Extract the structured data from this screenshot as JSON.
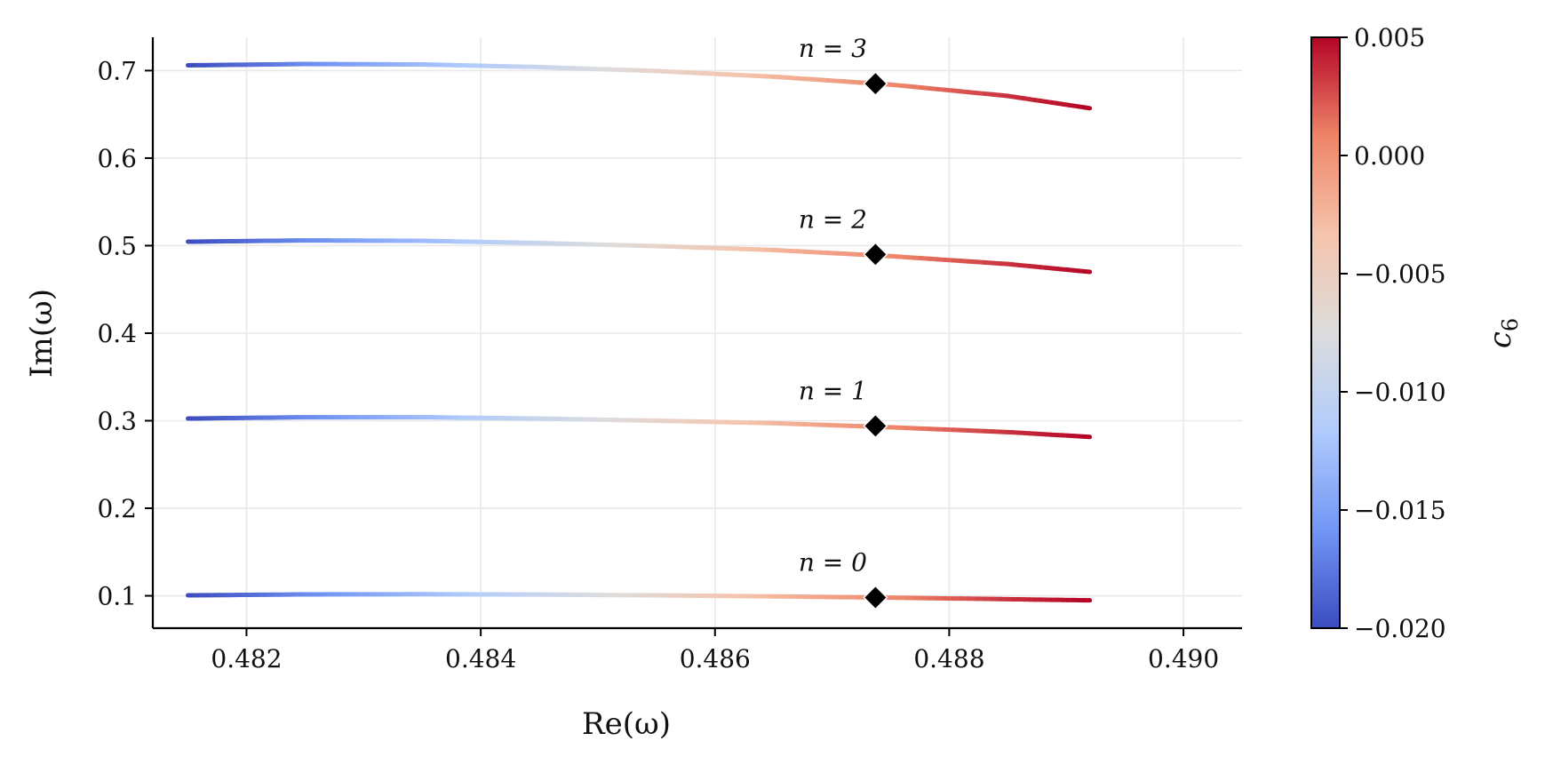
{
  "chart_data": {
    "type": "line",
    "xlabel": "Re(ω)",
    "ylabel": "Im(ω)",
    "xlim": [
      0.4812,
      0.4905
    ],
    "ylim": [
      0.063,
      0.738
    ],
    "x_ticks": [
      0.482,
      0.484,
      0.486,
      0.488,
      0.49
    ],
    "x_tick_labels": [
      "0.482",
      "0.484",
      "0.486",
      "0.488",
      "0.490"
    ],
    "y_ticks": [
      0.1,
      0.2,
      0.3,
      0.4,
      0.5,
      0.6,
      0.7
    ],
    "y_tick_labels": [
      "0.1",
      "0.2",
      "0.3",
      "0.4",
      "0.5",
      "0.6",
      "0.7"
    ],
    "grid": true,
    "color_by": "c6",
    "series": [
      {
        "name": "n = 0",
        "label": "n = 0",
        "x": [
          0.4815,
          0.4825,
          0.4835,
          0.4845,
          0.4855,
          0.4865,
          0.4875,
          0.4885,
          0.4892
        ],
        "y": [
          0.1005,
          0.1016,
          0.1018,
          0.1014,
          0.1005,
          0.0993,
          0.0979,
          0.0961,
          0.0948
        ],
        "c6": [
          -0.02,
          -0.0165,
          -0.013,
          -0.0095,
          -0.006,
          -0.0025,
          0.0005,
          0.0035,
          0.005
        ]
      },
      {
        "name": "n = 1",
        "label": "n = 1",
        "x": [
          0.4815,
          0.4825,
          0.4835,
          0.4845,
          0.4855,
          0.4865,
          0.4875,
          0.4885,
          0.4892
        ],
        "y": [
          0.3025,
          0.304,
          0.304,
          0.3025,
          0.3,
          0.2972,
          0.2925,
          0.287,
          0.2815
        ],
        "c6": [
          -0.02,
          -0.0165,
          -0.013,
          -0.0095,
          -0.006,
          -0.0025,
          0.0005,
          0.0035,
          0.005
        ]
      },
      {
        "name": "n = 2",
        "label": "n = 2",
        "x": [
          0.4815,
          0.4825,
          0.4835,
          0.4845,
          0.4855,
          0.4865,
          0.4875,
          0.4885,
          0.4892
        ],
        "y": [
          0.5045,
          0.506,
          0.5055,
          0.503,
          0.4995,
          0.495,
          0.488,
          0.479,
          0.47
        ],
        "c6": [
          -0.02,
          -0.0165,
          -0.013,
          -0.0095,
          -0.006,
          -0.0025,
          0.0005,
          0.0035,
          0.005
        ]
      },
      {
        "name": "n = 3",
        "label": "n = 3",
        "x": [
          0.4815,
          0.4825,
          0.4835,
          0.4845,
          0.4855,
          0.4865,
          0.4875,
          0.4885,
          0.4892
        ],
        "y": [
          0.706,
          0.7075,
          0.707,
          0.704,
          0.6995,
          0.693,
          0.684,
          0.671,
          0.657
        ],
        "c6": [
          -0.02,
          -0.0165,
          -0.013,
          -0.0095,
          -0.006,
          -0.0025,
          0.0005,
          0.0035,
          0.005
        ]
      }
    ],
    "markers": [
      {
        "name": "n = 0",
        "x": 0.48737,
        "y": 0.098
      },
      {
        "name": "n = 1",
        "x": 0.48737,
        "y": 0.294
      },
      {
        "name": "n = 2",
        "x": 0.48737,
        "y": 0.49
      },
      {
        "name": "n = 3",
        "x": 0.48737,
        "y": 0.685
      }
    ],
    "colorbar": {
      "label": "c6",
      "label_main": "c",
      "label_sub": "6",
      "min": -0.02,
      "max": 0.005,
      "ticks": [
        0.005,
        0.0,
        -0.005,
        -0.01,
        -0.015,
        -0.02
      ],
      "tick_labels": [
        "0.005",
        "0.000",
        "−0.005",
        "−0.010",
        "−0.015",
        "−0.020"
      ],
      "colormap": "coolwarm",
      "colormap_stops": [
        "#3b4cc0",
        "#7396f5",
        "#b0cbfc",
        "#dddddd",
        "#f5c4ac",
        "#ee8468",
        "#b40426"
      ]
    }
  }
}
